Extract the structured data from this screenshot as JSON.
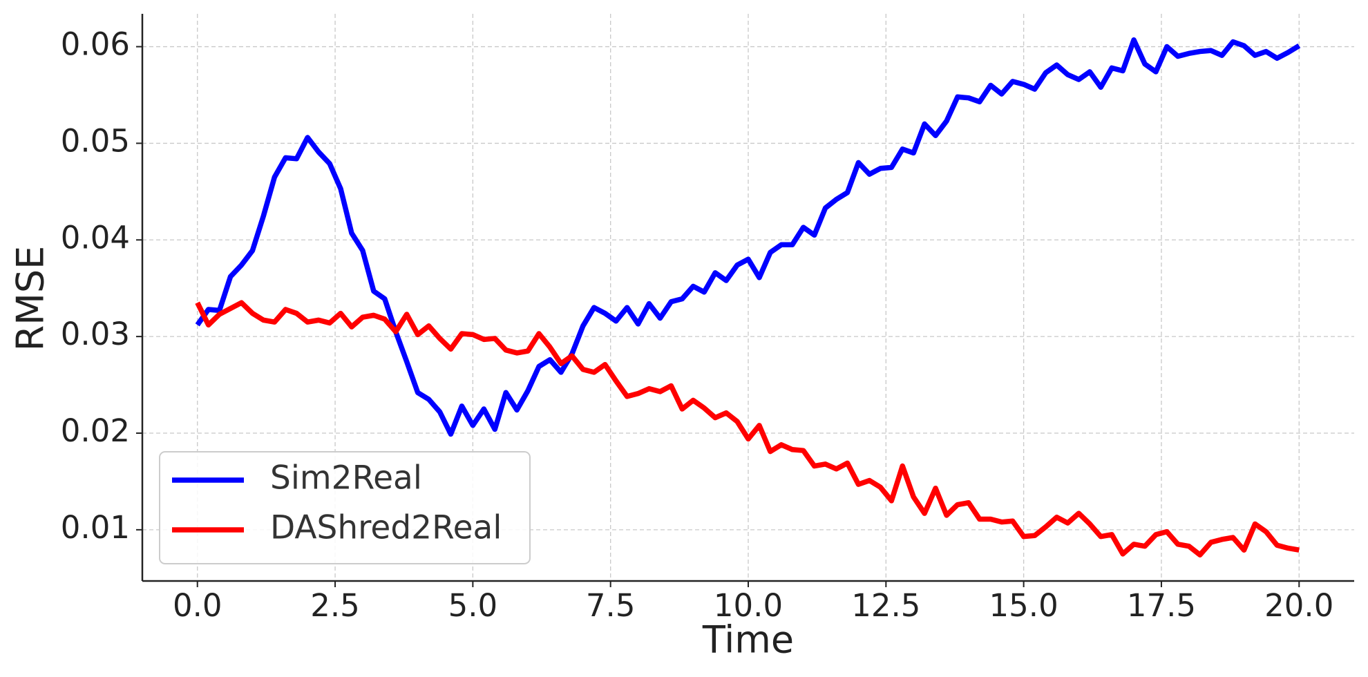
{
  "chart_data": {
    "type": "line",
    "xlabel": "Time",
    "ylabel": "RMSE",
    "x": [
      0,
      0.2,
      0.4,
      0.6,
      0.8,
      1,
      1.2,
      1.4,
      1.6,
      1.8,
      2,
      2.2,
      2.4,
      2.6,
      2.8,
      3,
      3.2,
      3.4,
      3.6,
      3.8,
      4,
      4.2,
      4.4,
      4.6,
      4.8,
      5,
      5.2,
      5.4,
      5.6,
      5.8,
      6,
      6.2,
      6.4,
      6.6,
      6.8,
      7,
      7.2,
      7.4,
      7.6,
      7.8,
      8,
      8.2,
      8.4,
      8.6,
      8.8,
      9,
      9.2,
      9.4,
      9.6,
      9.8,
      10,
      10.2,
      10.4,
      10.6,
      10.8,
      11,
      11.2,
      11.4,
      11.6,
      11.8,
      12,
      12.2,
      12.4,
      12.6,
      12.8,
      13,
      13.2,
      13.4,
      13.6,
      13.8,
      14,
      14.2,
      14.4,
      14.6,
      14.8,
      15,
      15.2,
      15.4,
      15.6,
      15.8,
      16,
      16.2,
      16.4,
      16.6,
      16.8,
      17,
      17.2,
      17.4,
      17.6,
      17.8,
      18,
      18.2,
      18.4,
      18.6,
      18.8,
      19,
      19.2,
      19.4,
      19.6,
      19.8,
      20
    ],
    "series": [
      {
        "name": "Sim2Real",
        "color": "#0000ff",
        "values": [
          0.0312,
          0.0328,
          0.0327,
          0.0362,
          0.0374,
          0.0389,
          0.0425,
          0.0465,
          0.0485,
          0.0484,
          0.0506,
          0.0491,
          0.0479,
          0.0453,
          0.0407,
          0.0389,
          0.0347,
          0.0339,
          0.0305,
          0.0274,
          0.0242,
          0.0235,
          0.0222,
          0.0199,
          0.0228,
          0.0208,
          0.0225,
          0.0204,
          0.0242,
          0.0224,
          0.0244,
          0.0269,
          0.0276,
          0.0263,
          0.0282,
          0.0311,
          0.033,
          0.0324,
          0.0316,
          0.033,
          0.0313,
          0.0334,
          0.0319,
          0.0336,
          0.0339,
          0.0352,
          0.0346,
          0.0366,
          0.0358,
          0.0374,
          0.038,
          0.0361,
          0.0387,
          0.0395,
          0.0395,
          0.0413,
          0.0405,
          0.0433,
          0.0442,
          0.0449,
          0.048,
          0.0468,
          0.0474,
          0.0475,
          0.0494,
          0.049,
          0.052,
          0.0508,
          0.0523,
          0.0548,
          0.0547,
          0.0543,
          0.056,
          0.0551,
          0.0564,
          0.0561,
          0.0556,
          0.0573,
          0.0581,
          0.0571,
          0.0566,
          0.0574,
          0.0558,
          0.0578,
          0.0575,
          0.0607,
          0.0582,
          0.0574,
          0.06,
          0.059,
          0.0593,
          0.0595,
          0.0596,
          0.0591,
          0.0605,
          0.0601,
          0.0591,
          0.0595,
          0.0588,
          0.0594,
          0.0601
        ]
      },
      {
        "name": "DAShred2Real",
        "color": "#ff0000",
        "values": [
          0.0335,
          0.0312,
          0.0323,
          0.0329,
          0.0335,
          0.0324,
          0.0317,
          0.0315,
          0.0328,
          0.0324,
          0.0315,
          0.0317,
          0.0314,
          0.0324,
          0.031,
          0.032,
          0.0322,
          0.0318,
          0.0305,
          0.0323,
          0.0302,
          0.0311,
          0.0298,
          0.0287,
          0.0303,
          0.0302,
          0.0297,
          0.0298,
          0.0286,
          0.0283,
          0.0285,
          0.0303,
          0.0289,
          0.0272,
          0.028,
          0.0266,
          0.0263,
          0.0271,
          0.0254,
          0.0238,
          0.0241,
          0.0246,
          0.0243,
          0.0249,
          0.0225,
          0.0234,
          0.0226,
          0.0216,
          0.0221,
          0.0212,
          0.0194,
          0.0208,
          0.0181,
          0.0188,
          0.0183,
          0.0182,
          0.0166,
          0.0168,
          0.0163,
          0.0169,
          0.0147,
          0.0151,
          0.0144,
          0.013,
          0.0166,
          0.0134,
          0.0117,
          0.0143,
          0.0115,
          0.0126,
          0.0128,
          0.0111,
          0.0111,
          0.0108,
          0.0109,
          0.0093,
          0.0094,
          0.0103,
          0.0113,
          0.0107,
          0.0117,
          0.0106,
          0.0093,
          0.0095,
          0.0075,
          0.0085,
          0.0083,
          0.0095,
          0.0098,
          0.0085,
          0.0083,
          0.0074,
          0.0087,
          0.009,
          0.0092,
          0.0079,
          0.0106,
          0.0098,
          0.0084,
          0.0081,
          0.0079
        ]
      }
    ],
    "xlim": [
      -1,
      21
    ],
    "ylim": [
      0.0047,
      0.0634
    ],
    "xticks": [
      {
        "value": 0,
        "label": "0.0"
      },
      {
        "value": 2.5,
        "label": "2.5"
      },
      {
        "value": 5,
        "label": "5.0"
      },
      {
        "value": 7.5,
        "label": "7.5"
      },
      {
        "value": 10,
        "label": "10.0"
      },
      {
        "value": 12.5,
        "label": "12.5"
      },
      {
        "value": 15,
        "label": "15.0"
      },
      {
        "value": 17.5,
        "label": "17.5"
      },
      {
        "value": 20,
        "label": "20.0"
      }
    ],
    "yticks": [
      0.01,
      0.02,
      0.03,
      0.04,
      0.05,
      0.06
    ],
    "grid": true,
    "legend": "lower left"
  }
}
